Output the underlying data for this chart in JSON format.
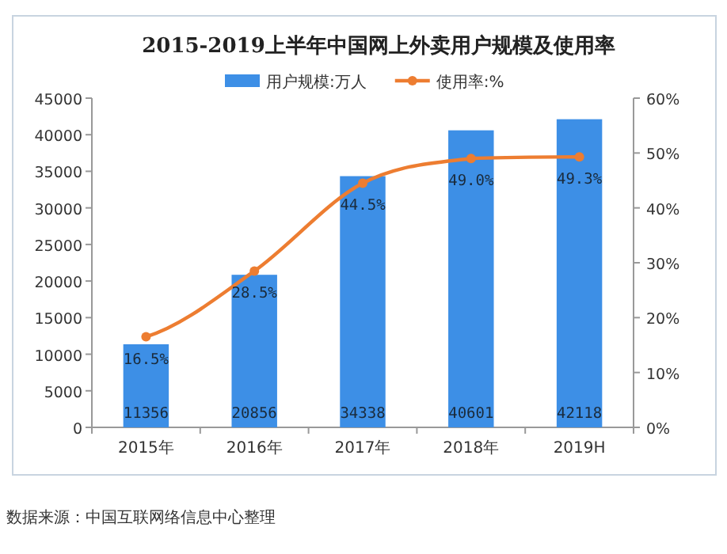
{
  "chart_data": {
    "type": "bar",
    "title": "2015-2019上半年中国网上外卖用户规模及使用率",
    "categories": [
      "2015年",
      "2016年",
      "2017年",
      "2018年",
      "2019H"
    ],
    "series": [
      {
        "name": "用户规模:万人",
        "color": "#3d8fe6",
        "values": [
          11356,
          20856,
          34338,
          40601,
          42118
        ]
      },
      {
        "name": "使用率:%",
        "type": "line",
        "axis": "y2",
        "color": "#ed7d31",
        "values": [
          16.5,
          28.5,
          44.5,
          49.0,
          49.3
        ],
        "value_labels": [
          "16.5%",
          "28.5%",
          "44.5%",
          "49.0%",
          "49.3%"
        ]
      }
    ],
    "ylim": [
      0,
      45000
    ],
    "yticks": [
      0,
      5000,
      10000,
      15000,
      20000,
      25000,
      30000,
      35000,
      40000,
      45000
    ],
    "y2lim": [
      0,
      60
    ],
    "y2ticks": [
      {
        "value": 0,
        "label": "0%"
      },
      {
        "value": 10,
        "label": "10%"
      },
      {
        "value": 20,
        "label": "20%"
      },
      {
        "value": 30,
        "label": "30%"
      },
      {
        "value": 40,
        "label": "40%"
      },
      {
        "value": 50,
        "label": "50%"
      },
      {
        "value": 60,
        "label": "60%"
      }
    ],
    "data_labels": true,
    "legend": "top",
    "marker": "circle",
    "annotations": [
      "数据来源：中国互联网络信息中心整理"
    ]
  }
}
